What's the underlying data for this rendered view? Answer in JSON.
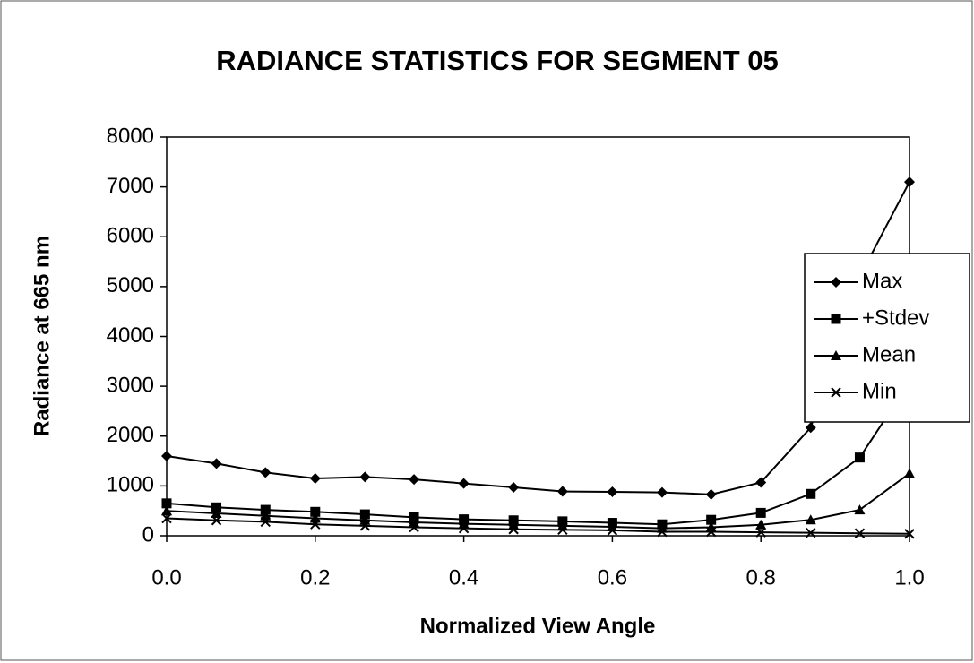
{
  "chart_data": {
    "type": "line",
    "title": "RADIANCE STATISTICS FOR SEGMENT 05",
    "x_label": "Normalized View Angle",
    "y_label": "Radiance at 665 nm",
    "x": [
      0,
      0.067,
      0.133,
      0.2,
      0.267,
      0.333,
      0.4,
      0.467,
      0.533,
      0.6,
      0.667,
      0.733,
      0.8,
      0.867,
      0.933,
      1.0
    ],
    "series": [
      {
        "name": "Max",
        "color": "#000000",
        "marker": "diamond",
        "values": [
          1600,
          1450,
          1270,
          1150,
          1180,
          1130,
          1050,
          970,
          890,
          880,
          870,
          830,
          1070,
          2170,
          5200,
          7100
        ]
      },
      {
        "name": "+Stdev",
        "color": "#000000",
        "marker": "square",
        "values": [
          650,
          570,
          520,
          480,
          430,
          370,
          330,
          310,
          290,
          260,
          230,
          320,
          460,
          840,
          1570,
          3080
        ]
      },
      {
        "name": "Mean",
        "color": "#000000",
        "marker": "triangle",
        "values": [
          500,
          450,
          400,
          350,
          310,
          270,
          240,
          220,
          200,
          180,
          150,
          170,
          220,
          320,
          520,
          1250
        ]
      },
      {
        "name": "Min",
        "color": "#000000",
        "marker": "x",
        "values": [
          350,
          310,
          280,
          230,
          200,
          170,
          150,
          130,
          120,
          110,
          80,
          80,
          70,
          60,
          50,
          40
        ]
      }
    ],
    "xlim": [
      0,
      1
    ],
    "ylim": [
      0,
      8000
    ],
    "xticks": [
      {
        "value": 0,
        "label": "0.0"
      },
      {
        "value": 0.2,
        "label": "0.2"
      },
      {
        "value": 0.4,
        "label": "0.4"
      },
      {
        "value": 0.6,
        "label": "0.6"
      },
      {
        "value": 0.8,
        "label": "0.8"
      },
      {
        "value": 1,
        "label": "1.0"
      }
    ],
    "yticks": [
      0,
      1000,
      2000,
      3000,
      4000,
      5000,
      6000,
      7000,
      8000
    ],
    "grid": false,
    "legend": "right"
  }
}
